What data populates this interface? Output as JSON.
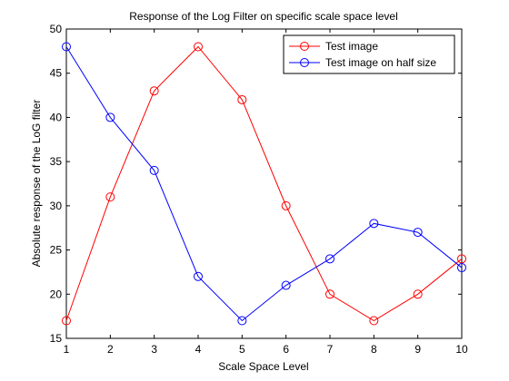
{
  "chart_data": {
    "type": "line",
    "title": "Response of the Log Filter on specific scale space level",
    "xlabel": "Scale Space Level",
    "ylabel": "Absolute response of the LoG filter",
    "xlim": [
      1,
      10
    ],
    "ylim": [
      15,
      50
    ],
    "x": [
      1,
      2,
      3,
      4,
      5,
      6,
      7,
      8,
      9,
      10
    ],
    "x_ticks": [
      "1",
      "2",
      "3",
      "4",
      "5",
      "6",
      "7",
      "8",
      "9",
      "10"
    ],
    "y_ticks": [
      "15",
      "20",
      "25",
      "30",
      "35",
      "40",
      "45",
      "50"
    ],
    "grid": false,
    "legend_position": "top-right",
    "marker": "circle",
    "series": [
      {
        "name": "Test image",
        "color": "#ff0000",
        "values": [
          17,
          31,
          43,
          48,
          42,
          30,
          20,
          17,
          20,
          24
        ]
      },
      {
        "name": "Test image on half size",
        "color": "#0000ff",
        "values": [
          48,
          40,
          34,
          22,
          17,
          21,
          24,
          28,
          27,
          23
        ]
      }
    ]
  }
}
